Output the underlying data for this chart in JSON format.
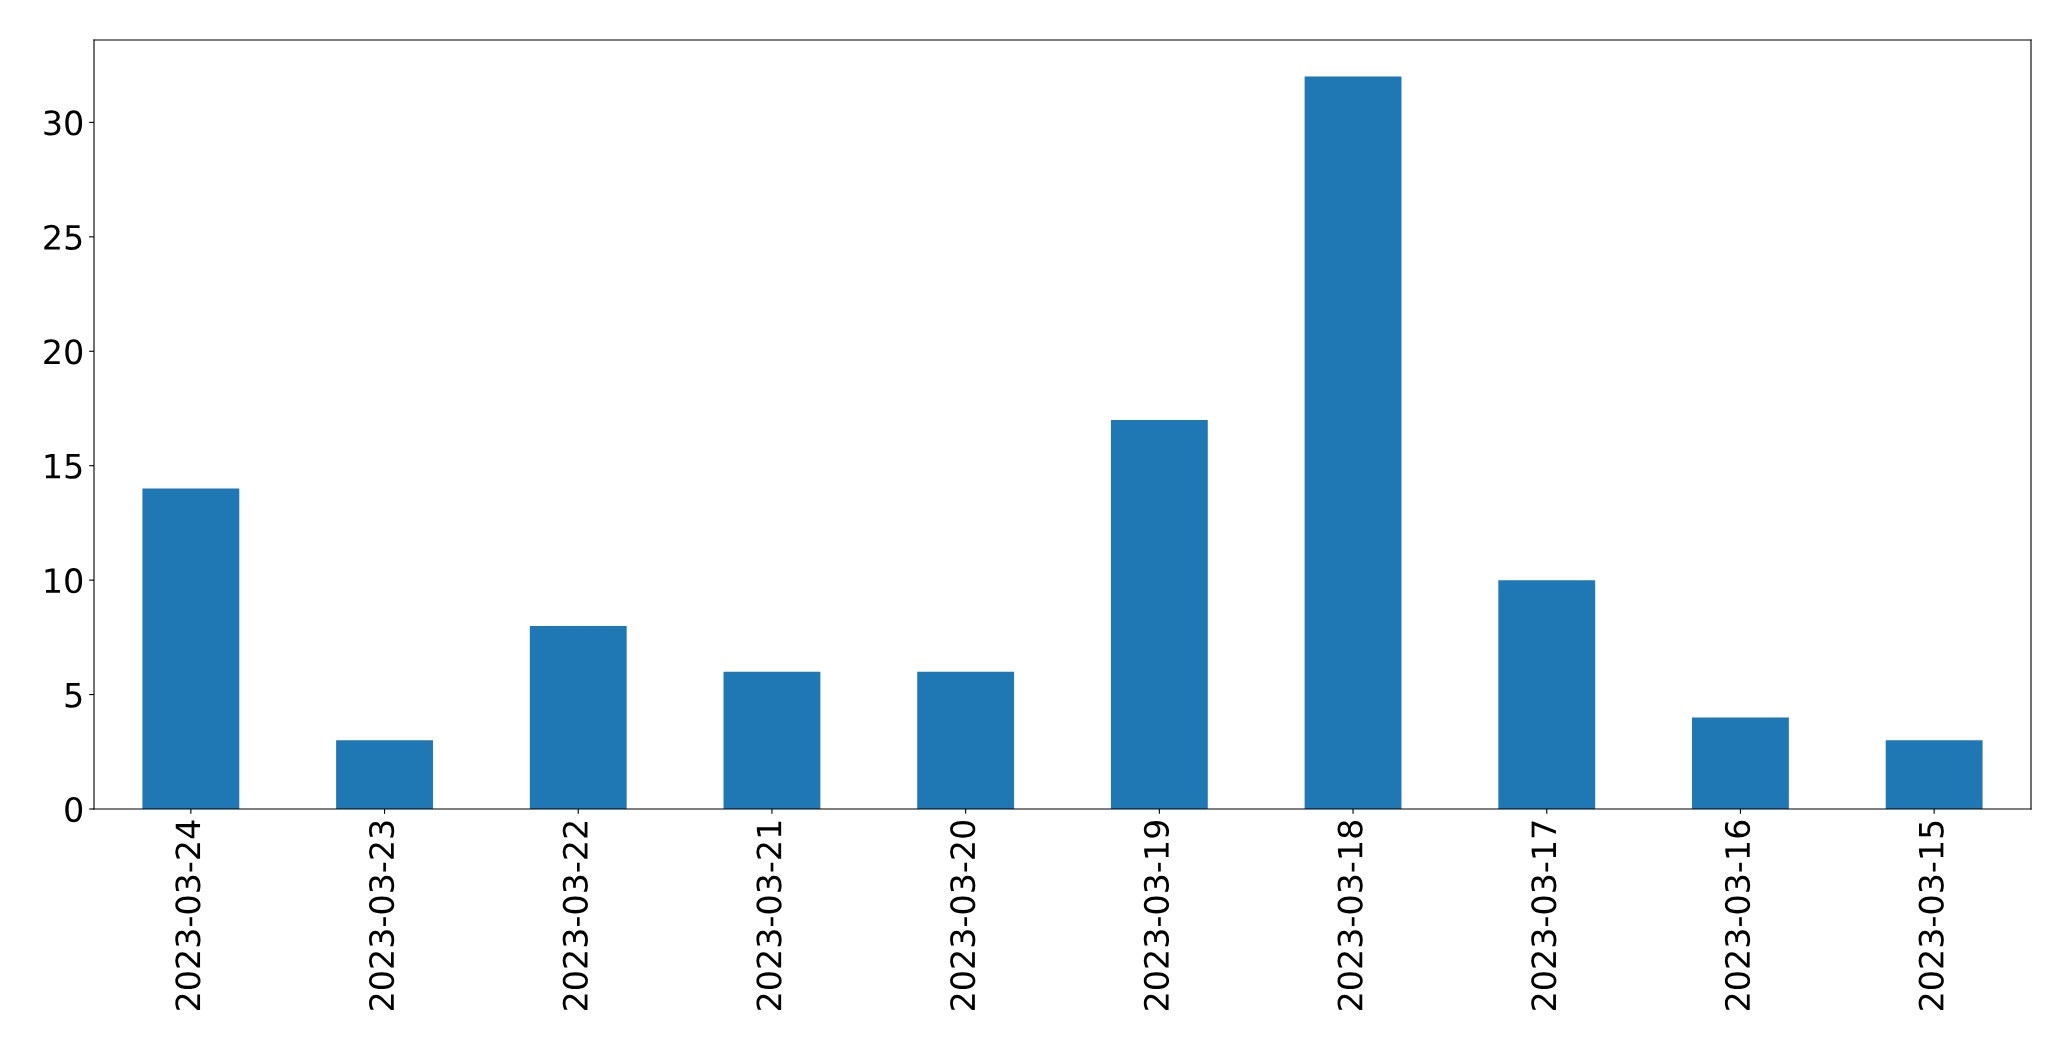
{
  "chart_data": {
    "type": "bar",
    "categories": [
      "2023-03-24",
      "2023-03-23",
      "2023-03-22",
      "2023-03-21",
      "2023-03-20",
      "2023-03-19",
      "2023-03-18",
      "2023-03-17",
      "2023-03-16",
      "2023-03-15"
    ],
    "values": [
      14,
      3,
      8,
      6,
      6,
      17,
      32,
      10,
      4,
      3
    ],
    "color": "#1f77b4",
    "ylim": [
      0,
      33.6
    ],
    "yticks": [
      0,
      5,
      10,
      15,
      20,
      25,
      30
    ],
    "grid": false,
    "legend": false
  }
}
